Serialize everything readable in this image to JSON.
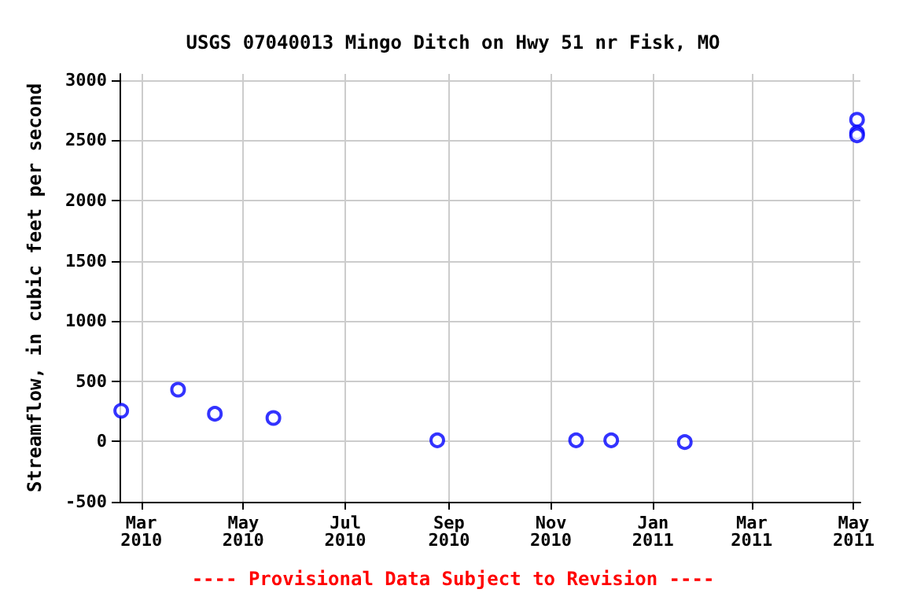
{
  "chart_data": {
    "type": "scatter",
    "title": "USGS 07040013 Mingo Ditch on Hwy 51 nr Fisk, MO",
    "ylabel": "Streamflow, in cubic feet per second",
    "x": [
      "2010-02-17",
      "2010-03-23",
      "2010-04-14",
      "2010-05-19",
      "2010-08-25",
      "2010-11-16",
      "2010-12-07",
      "2011-01-20",
      "2011-05-03",
      "2011-05-03",
      "2011-05-03"
    ],
    "values": [
      255,
      430,
      230,
      195,
      10,
      10,
      10,
      -5,
      2670,
      2560,
      2540
    ],
    "color": "#0000ff",
    "marker": "circle",
    "grid": true,
    "xlim": [
      "2010-02-16",
      "2011-05-05"
    ],
    "xticks": [
      {
        "value": "2010-03-01",
        "label": "Mar\n2010"
      },
      {
        "value": "2010-05-01",
        "label": "May\n2010"
      },
      {
        "value": "2010-07-01",
        "label": "Jul\n2010"
      },
      {
        "value": "2010-09-01",
        "label": "Sep\n2010"
      },
      {
        "value": "2010-11-01",
        "label": "Nov\n2010"
      },
      {
        "value": "2011-01-01",
        "label": "Jan\n2011"
      },
      {
        "value": "2011-03-01",
        "label": "Mar\n2011"
      },
      {
        "value": "2011-05-01",
        "label": "May\n2011"
      }
    ],
    "ylim": [
      -500,
      3050
    ],
    "yticks": [
      -500,
      0,
      500,
      1000,
      1500,
      2000,
      2500,
      3000
    ],
    "annotations": [
      "---- Provisional Data Subject to Revision ----"
    ]
  }
}
